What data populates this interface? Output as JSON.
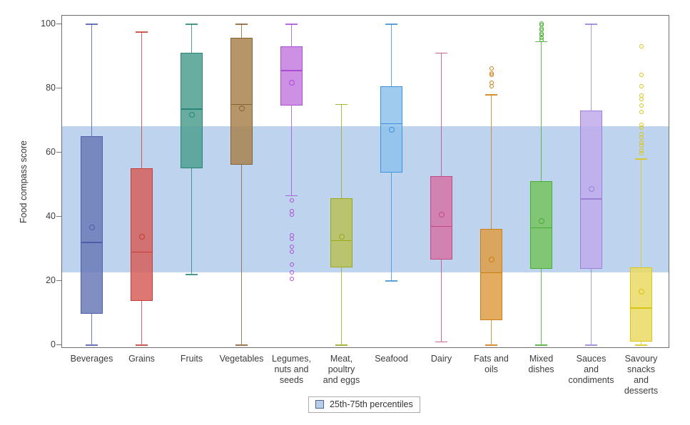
{
  "figure": {
    "ylabel": "Food compass score",
    "legend_label": "25th-75th percentiles"
  },
  "chart_data": {
    "type": "boxplot",
    "title": "",
    "xlabel": "",
    "ylabel": "Food compass score",
    "ylim": [
      0,
      100
    ],
    "yticks": [
      0,
      20,
      40,
      60,
      80,
      100
    ],
    "grid": false,
    "legend": {
      "label": "25th-75th percentiles",
      "position": "bottom-center"
    },
    "band": {
      "meaning": "25th-75th percentiles",
      "low": 22.5,
      "high": 68,
      "color": "#bed3ed"
    },
    "categories": [
      "Beverages",
      "Grains",
      "Fruits",
      "Vegetables",
      "Legumes, nuts and seeds",
      "Meat, poultry and eggs",
      "Seafood",
      "Dairy",
      "Fats and oils",
      "Mixed dishes",
      "Sauces and condiments",
      "Savoury snacks and desserts"
    ],
    "series": [
      {
        "category": "Beverages",
        "label_lines": [
          "Beverages"
        ],
        "min": 0,
        "q1": 9.5,
        "median": 32,
        "mean": 36.5,
        "q3": 65,
        "max": 100,
        "outliers": [],
        "fill": "#6b7ab7",
        "stroke": "#4e5ead"
      },
      {
        "category": "Grains",
        "label_lines": [
          "Grains"
        ],
        "min": 0,
        "q1": 13.5,
        "median": 29,
        "mean": 33.5,
        "q3": 55,
        "max": 97.5,
        "outliers": [],
        "fill": "#d65f5a",
        "stroke": "#c43d38"
      },
      {
        "category": "Fruits",
        "label_lines": [
          "Fruits"
        ],
        "min": 22,
        "q1": 55,
        "median": 73.5,
        "mean": 71.5,
        "q3": 91,
        "max": 100,
        "outliers": [],
        "fill": "#4f9f90",
        "stroke": "#27857a"
      },
      {
        "category": "Vegetables",
        "label_lines": [
          "Vegetables"
        ],
        "min": 0,
        "q1": 56,
        "median": 75,
        "mean": 73.5,
        "q3": 95.5,
        "max": 100,
        "outliers": [],
        "fill": "#a9824f",
        "stroke": "#8a6232"
      },
      {
        "category": "Legumes, nuts and seeds",
        "label_lines": [
          "Legumes,",
          "nuts and",
          "seeds"
        ],
        "min": 46.5,
        "q1": 74.5,
        "median": 85.5,
        "mean": 81.5,
        "q3": 93,
        "max": 100,
        "outliers": [
          45,
          41.5,
          40.5,
          34,
          33,
          30.5,
          29,
          25,
          22.5,
          20.5
        ],
        "fill": "#c47de0",
        "stroke": "#a94fd4"
      },
      {
        "category": "Meat, poultry and eggs",
        "label_lines": [
          "Meat,",
          "poultry",
          "and eggs"
        ],
        "min": 0,
        "q1": 24,
        "median": 32.5,
        "mean": 33.5,
        "q3": 45.5,
        "max": 75,
        "outliers": [],
        "fill": "#babf57",
        "stroke": "#9ba81c"
      },
      {
        "category": "Seafood",
        "label_lines": [
          "Seafood"
        ],
        "min": 20,
        "q1": 53.5,
        "median": 69,
        "mean": 67,
        "q3": 80.5,
        "max": 100,
        "outliers": [],
        "fill": "#8ec2eb",
        "stroke": "#3c92dc"
      },
      {
        "category": "Dairy",
        "label_lines": [
          "Dairy"
        ],
        "min": 1,
        "q1": 26.5,
        "median": 37,
        "mean": 40.5,
        "q3": 52.5,
        "max": 91,
        "outliers": [],
        "fill": "#d573a6",
        "stroke": "#c34a80"
      },
      {
        "category": "Fats and oils",
        "label_lines": [
          "Fats and",
          "oils"
        ],
        "min": 0,
        "q1": 7.5,
        "median": 22.5,
        "mean": 26.5,
        "q3": 36,
        "max": 78,
        "outliers": [
          86,
          84.5,
          84,
          81.5,
          80.5
        ],
        "fill": "#df9d44",
        "stroke": "#ce7d12"
      },
      {
        "category": "Mixed dishes",
        "label_lines": [
          "Mixed",
          "dishes"
        ],
        "min": 0,
        "q1": 23.5,
        "median": 36.5,
        "mean": 38.5,
        "q3": 51,
        "max": 94.5,
        "outliers": [
          100,
          99.5,
          98.5,
          98,
          97,
          96.5,
          95.5,
          95
        ],
        "fill": "#75c35f",
        "stroke": "#47ad31"
      },
      {
        "category": "Sauces and condiments",
        "label_lines": [
          "Sauces",
          "and",
          "condiments"
        ],
        "min": 0,
        "q1": 23.5,
        "median": 45.5,
        "mean": 48.5,
        "q3": 73,
        "max": 100,
        "outliers": [],
        "fill": "#c0abeb",
        "stroke": "#9b80d8"
      },
      {
        "category": "Savoury snacks and desserts",
        "label_lines": [
          "Savoury",
          "snacks",
          "and",
          "desserts"
        ],
        "min": 0,
        "q1": 1,
        "median": 11.5,
        "mean": 16.5,
        "q3": 24,
        "max": 58,
        "outliers": [
          93,
          84,
          80.5,
          77.5,
          76.5,
          74.5,
          72.5,
          68.5,
          67.5,
          65.5,
          64.5,
          63,
          62,
          60.5,
          59.5
        ],
        "fill": "#ead961",
        "stroke": "#d9c513"
      }
    ]
  }
}
